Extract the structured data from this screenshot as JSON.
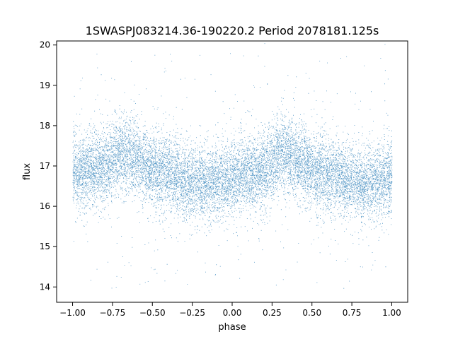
{
  "chart_data": {
    "type": "scatter",
    "title": "1SWASPJ083214.36-190220.2 Period 2078181.125s",
    "xlabel": "phase",
    "ylabel": "flux",
    "xlim": [
      -1.1,
      1.1
    ],
    "ylim": [
      13.62,
      20.1
    ],
    "x_ticks": [
      {
        "value": -1.0,
        "label": "−1.00"
      },
      {
        "value": -0.75,
        "label": "−0.75"
      },
      {
        "value": -0.5,
        "label": "−0.50"
      },
      {
        "value": -0.25,
        "label": "−0.25"
      },
      {
        "value": 0.0,
        "label": "0.00"
      },
      {
        "value": 0.25,
        "label": "0.25"
      },
      {
        "value": 0.5,
        "label": "0.50"
      },
      {
        "value": 0.75,
        "label": "0.75"
      },
      {
        "value": 1.0,
        "label": "1.00"
      }
    ],
    "y_ticks": [
      {
        "value": 14,
        "label": "14"
      },
      {
        "value": 15,
        "label": "15"
      },
      {
        "value": 16,
        "label": "16"
      },
      {
        "value": 17,
        "label": "17"
      },
      {
        "value": 18,
        "label": "18"
      },
      {
        "value": 19,
        "label": "19"
      },
      {
        "value": 20,
        "label": "20"
      }
    ],
    "grid": false,
    "marker_color": "#1f77b4",
    "series_profile": {
      "phase": [
        -1.0,
        -0.9,
        -0.8,
        -0.7,
        -0.6,
        -0.5,
        -0.4,
        -0.3,
        -0.2,
        -0.1,
        0.0,
        0.1,
        0.2,
        0.3,
        0.4,
        0.5,
        0.6,
        0.7,
        0.8,
        0.9,
        1.0
      ],
      "median_flux": [
        16.9,
        16.9,
        17.0,
        17.3,
        17.2,
        16.9,
        16.8,
        16.6,
        16.6,
        16.6,
        16.7,
        16.8,
        16.9,
        17.3,
        17.2,
        16.9,
        16.8,
        16.7,
        16.6,
        16.6,
        16.8
      ],
      "spread": 0.45
    }
  }
}
